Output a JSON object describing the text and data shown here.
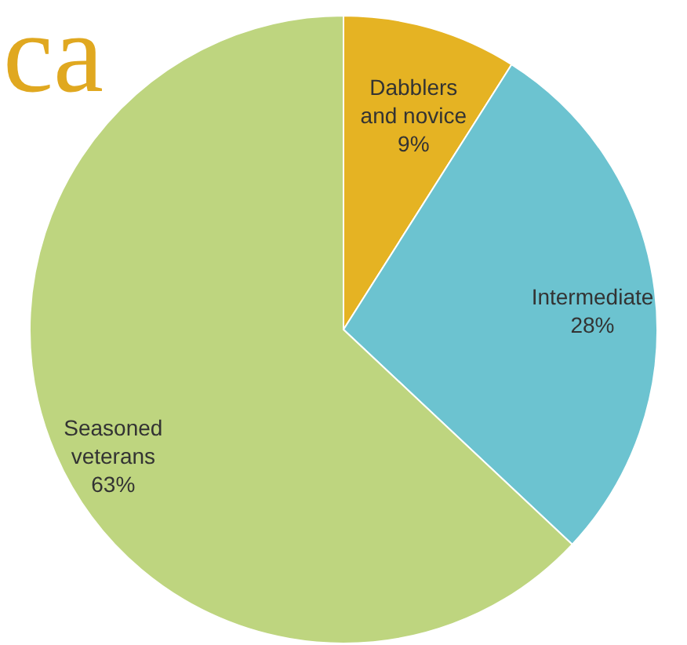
{
  "chart_data": {
    "type": "pie",
    "categories": [
      "Dabblers\nand novice",
      "Intermediate",
      "Seasoned\nveterans"
    ],
    "values": [
      9,
      28,
      63
    ],
    "colors": [
      "#e5b323",
      "#6cc3d0",
      "#bed57f"
    ],
    "value_labels": [
      "9%",
      "28%",
      "63%"
    ],
    "annotations": [
      "ca"
    ]
  }
}
